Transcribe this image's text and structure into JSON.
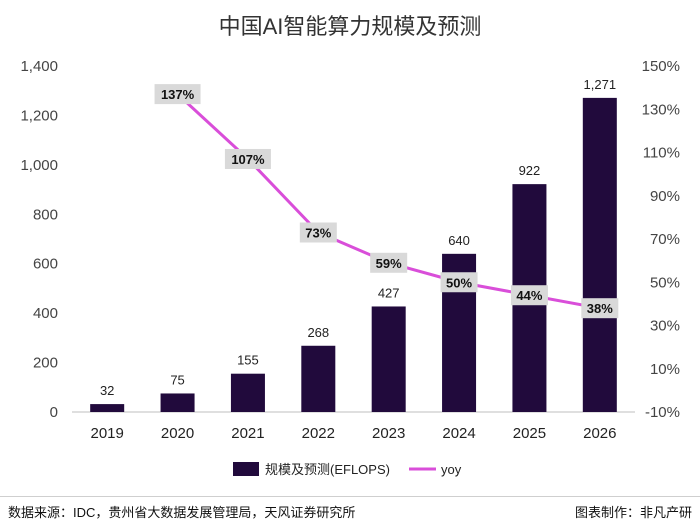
{
  "chart_data": {
    "type": "bar",
    "title": "中国AI智能算力规模及预测",
    "categories": [
      "2019",
      "2020",
      "2021",
      "2022",
      "2023",
      "2024",
      "2025",
      "2026"
    ],
    "series": [
      {
        "name": "规模及预测(EFLOPS)",
        "type": "bar",
        "axis": "left",
        "values": [
          32,
          75,
          155,
          268,
          427,
          640,
          922,
          1271
        ],
        "labels": [
          "32",
          "75",
          "155",
          "268",
          "427",
          "640",
          "922",
          "1,271"
        ],
        "color": "#210a3c"
      },
      {
        "name": "yoy",
        "type": "line",
        "axis": "right",
        "values": [
          null,
          137,
          107,
          73,
          59,
          50,
          44,
          38
        ],
        "labels": [
          null,
          "137%",
          "107%",
          "73%",
          "59%",
          "50%",
          "44%",
          "38%"
        ],
        "color": "#d94ed9"
      }
    ],
    "y_left": {
      "range": [
        0,
        1400
      ],
      "ticks": [
        0,
        200,
        400,
        600,
        800,
        1000,
        1200,
        1400
      ],
      "tick_labels": [
        "0",
        "200",
        "400",
        "600",
        "800",
        "1,000",
        "1,200",
        "1,400"
      ]
    },
    "y_right": {
      "range": [
        -10,
        150
      ],
      "ticks": [
        -10,
        10,
        30,
        50,
        70,
        90,
        110,
        130,
        150
      ],
      "tick_labels": [
        "-10%",
        "10%",
        "30%",
        "50%",
        "70%",
        "90%",
        "110%",
        "130%",
        "150%"
      ]
    },
    "grid": false,
    "legend": "bottom"
  },
  "footer": {
    "source": "数据来源：IDC，贵州省大数据发展管理局，天风证券研究所",
    "credit": "图表制作：非凡产研"
  }
}
